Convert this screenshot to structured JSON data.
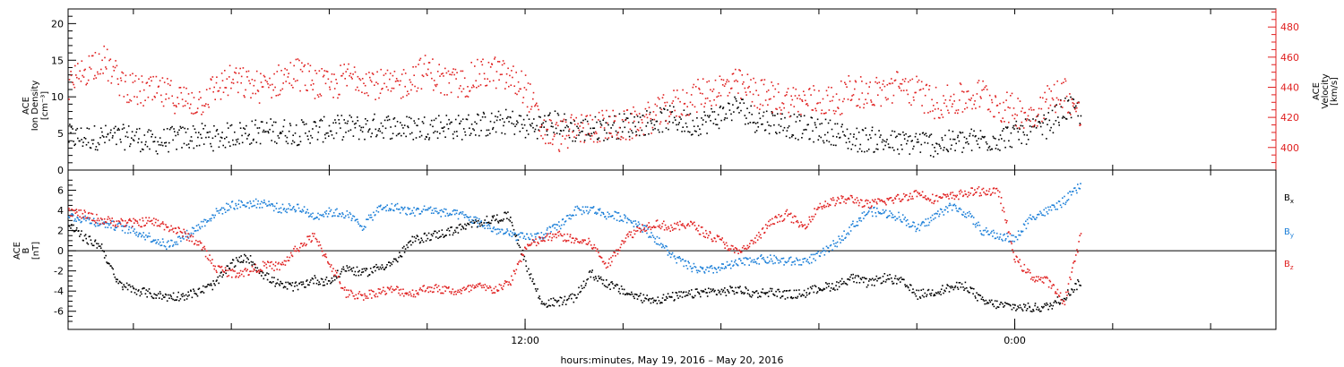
{
  "chart_data": [
    {
      "type": "scatter",
      "panel": "top",
      "ylabel": [
        "ACE",
        "Ion Density",
        "[cm⁻³]"
      ],
      "ylim": [
        0,
        22
      ],
      "yticks": [
        0,
        5,
        10,
        15,
        20
      ],
      "ylabel_right": [
        "ACE",
        "Velocity",
        "[km/s]"
      ],
      "ylim_right": [
        385,
        492
      ],
      "yticks_right": [
        400,
        420,
        440,
        460,
        480
      ],
      "x_range_hours": [
        0,
        37
      ],
      "series": [
        {
          "name": "",
          "axis": "left",
          "color": "#000000",
          "x_hours": [
            0,
            0.5,
            1,
            1.5,
            2,
            2.5,
            3,
            3.5,
            4,
            4.5,
            5,
            5.5,
            6,
            6.5,
            7,
            7.5,
            8,
            8.5,
            9,
            9.5,
            10,
            10.5,
            11,
            11.5,
            12,
            12.5,
            13,
            13.5,
            14,
            14.5,
            15,
            15.5,
            16,
            16.5,
            17,
            17.5,
            18,
            18.5,
            19,
            19.5,
            20,
            20.5,
            21,
            21.5,
            22,
            22.5,
            23,
            23.5,
            24,
            24.5,
            25,
            25.5,
            26,
            26.5,
            27,
            27.5,
            28,
            28.5,
            29,
            29.5,
            30,
            30.5,
            31
          ],
          "values": [
            4.6,
            4.5,
            4.6,
            4.5,
            4.7,
            3.8,
            4.2,
            4.5,
            4.8,
            4.4,
            5,
            5.2,
            5.4,
            5.5,
            5.2,
            5.5,
            5.7,
            6,
            5.8,
            6.2,
            6,
            5.8,
            6,
            6.2,
            5.9,
            6.4,
            6.3,
            6.8,
            6,
            6.2,
            6.6,
            5.5,
            5.7,
            5.9,
            6.2,
            6.5,
            6.8,
            7.2,
            6.4,
            6.7,
            7.6,
            8.9,
            7,
            6.8,
            6.3,
            5.8,
            5.5,
            5.2,
            4.2,
            4.3,
            4,
            3.7,
            4,
            3.6,
            3.8,
            4,
            4.2,
            4.4,
            5,
            5.5,
            6.2,
            8.5,
            8
          ]
        },
        {
          "name": "",
          "axis": "right",
          "color": "#e02020",
          "x_hours": [
            0,
            0.5,
            1,
            1.5,
            2,
            2.5,
            3,
            3.5,
            4,
            4.5,
            5,
            5.5,
            6,
            6.5,
            7,
            7.5,
            8,
            8.5,
            9,
            9.5,
            10,
            10.5,
            11,
            11.5,
            12,
            12.5,
            13,
            13.5,
            14,
            14.5,
            15,
            15.5,
            16,
            16.5,
            17,
            17.5,
            18,
            18.5,
            19,
            19.5,
            20,
            20.5,
            21,
            21.5,
            22,
            22.5,
            23,
            23.5,
            24,
            24.5,
            25,
            25.5,
            26,
            26.5,
            27,
            27.5,
            28,
            28.5,
            29,
            29.5,
            30,
            30.5,
            31
          ],
          "values": [
            440,
            452,
            460,
            446,
            438,
            437,
            436,
            432,
            431,
            440,
            445,
            442,
            440,
            446,
            450,
            444,
            440,
            447,
            448,
            442,
            440,
            447,
            452,
            444,
            442,
            448,
            451,
            446,
            440,
            412,
            408,
            412,
            414,
            415,
            414,
            418,
            422,
            428,
            432,
            437,
            440,
            442,
            437,
            434,
            432,
            431,
            432,
            431,
            439,
            436,
            438,
            442,
            437,
            430,
            431,
            433,
            436,
            428,
            425,
            422,
            432,
            438,
            420
          ]
        }
      ]
    },
    {
      "type": "scatter",
      "panel": "bottom",
      "ylabel": [
        "ACE",
        "B",
        "[nT]"
      ],
      "ylim": [
        -7.8,
        8
      ],
      "yticks": [
        -6,
        -4,
        -2,
        0,
        2,
        4,
        6
      ],
      "x_range_hours": [
        0,
        37
      ],
      "xticks": [
        {
          "hour": 14,
          "label": "12:00"
        },
        {
          "hour": 29,
          "label": "0:00"
        }
      ],
      "xlabel": "hours:minutes, May 19, 2016 – May 20, 2016",
      "series": [
        {
          "name": "B",
          "sub": "x",
          "color": "#000000",
          "x_hours": [
            0,
            0.5,
            1,
            1.5,
            2,
            2.5,
            3,
            3.5,
            4,
            4.5,
            5,
            5.5,
            6,
            6.5,
            7,
            7.5,
            8,
            8.5,
            9,
            9.5,
            10,
            10.5,
            11,
            11.5,
            12,
            12.5,
            13,
            13.5,
            14,
            14.5,
            15,
            15.5,
            16,
            16.5,
            17,
            17.5,
            18,
            18.5,
            19,
            19.5,
            20,
            20.5,
            21,
            21.5,
            22,
            22.5,
            23,
            23.5,
            24,
            24.5,
            25,
            25.5,
            26,
            26.5,
            27,
            27.5,
            28,
            28.5,
            29,
            29.5,
            30,
            30.5,
            31
          ],
          "values": [
            2.6,
            1.3,
            0.5,
            -3.2,
            -3.8,
            -4.2,
            -4.5,
            -4.4,
            -4,
            -3.2,
            -1.2,
            -0.6,
            -2.4,
            -3.4,
            -3.5,
            -2.8,
            -3,
            -1.6,
            -2.2,
            -1.6,
            -1,
            1,
            1.5,
            1.8,
            2.3,
            2.8,
            3.2,
            3.5,
            -1.2,
            -5.2,
            -5,
            -4.6,
            -2.2,
            -3.2,
            -4,
            -4.6,
            -4.8,
            -4.5,
            -4.3,
            -4,
            -4,
            -3.8,
            -4.2,
            -4,
            -4.3,
            -4.2,
            -3.6,
            -3.4,
            -2.6,
            -3.2,
            -2.6,
            -3,
            -4.3,
            -4,
            -3.6,
            -3.4,
            -5,
            -5.3,
            -5.5,
            -5.6,
            -5.5,
            -4.5,
            -3
          ]
        },
        {
          "name": "B",
          "sub": "y",
          "color": "#1c7fd8",
          "x_hours": [
            0,
            0.5,
            1,
            1.5,
            2,
            2.5,
            3,
            3.5,
            4,
            4.5,
            5,
            5.5,
            6,
            6.5,
            7,
            7.5,
            8,
            8.5,
            9,
            9.5,
            10,
            10.5,
            11,
            11.5,
            12,
            12.5,
            13,
            13.5,
            14,
            14.5,
            15,
            15.5,
            16,
            16.5,
            17,
            17.5,
            18,
            18.5,
            19,
            19.5,
            20,
            20.5,
            21,
            21.5,
            22,
            22.5,
            23,
            23.5,
            24,
            24.5,
            25,
            25.5,
            26,
            26.5,
            27,
            27.5,
            28,
            28.5,
            29,
            29.5,
            30,
            30.5,
            31
          ],
          "values": [
            3.5,
            3.2,
            2.8,
            2.5,
            2,
            1.4,
            0.6,
            1.4,
            2.5,
            3.8,
            4.6,
            4.7,
            4.8,
            4.2,
            4.4,
            3.5,
            3.9,
            3.7,
            2.5,
            4.2,
            4.4,
            3.9,
            4.2,
            3.8,
            3.6,
            3,
            2.2,
            1.7,
            1.3,
            1.6,
            2.5,
            4,
            4.2,
            3.6,
            3.4,
            2.6,
            1.2,
            -0.5,
            -1.5,
            -2,
            -1.6,
            -1.2,
            -0.8,
            -0.8,
            -1,
            -1,
            -0.4,
            0.8,
            2.5,
            4,
            3.8,
            3.4,
            2.2,
            3.4,
            4.5,
            3.8,
            2,
            1.5,
            1.2,
            3.5,
            4,
            5,
            6.5
          ]
        },
        {
          "name": "B",
          "sub": "z",
          "color": "#e02020",
          "x_hours": [
            0,
            0.5,
            1,
            1.5,
            2,
            2.5,
            3,
            3.5,
            4,
            4.5,
            5,
            5.5,
            6,
            6.5,
            7,
            7.5,
            8,
            8.5,
            9,
            9.5,
            10,
            10.5,
            11,
            11.5,
            12,
            12.5,
            13,
            13.5,
            14,
            14.5,
            15,
            15.5,
            16,
            16.5,
            17,
            17.5,
            18,
            18.5,
            19,
            19.5,
            20,
            20.5,
            21,
            21.5,
            22,
            22.5,
            23,
            23.5,
            24,
            24.5,
            25,
            25.5,
            26,
            26.5,
            27,
            27.5,
            28,
            28.5,
            29,
            29.5,
            30,
            30.5,
            31
          ],
          "values": [
            4,
            3.6,
            3.1,
            2.9,
            2.8,
            3,
            2.5,
            1.8,
            0.8,
            -1.6,
            -2.2,
            -2,
            -1.4,
            -1.5,
            0.3,
            1.5,
            -1.2,
            -4.2,
            -4.4,
            -4,
            -3.8,
            -4.2,
            -3.6,
            -3.8,
            -4,
            -3.5,
            -3.8,
            -3.2,
            0.4,
            1.2,
            1.6,
            1.1,
            0.8,
            -1.5,
            1.2,
            2.3,
            2.8,
            2.3,
            2.8,
            1.8,
            1,
            -0.2,
            1,
            2.8,
            3.7,
            2.4,
            4.5,
            5,
            5.2,
            4.6,
            5,
            5.3,
            5.8,
            5.2,
            5.4,
            5.8,
            6,
            5.8,
            -0.8,
            -2.5,
            -3,
            -5,
            1.5
          ]
        }
      ]
    }
  ]
}
